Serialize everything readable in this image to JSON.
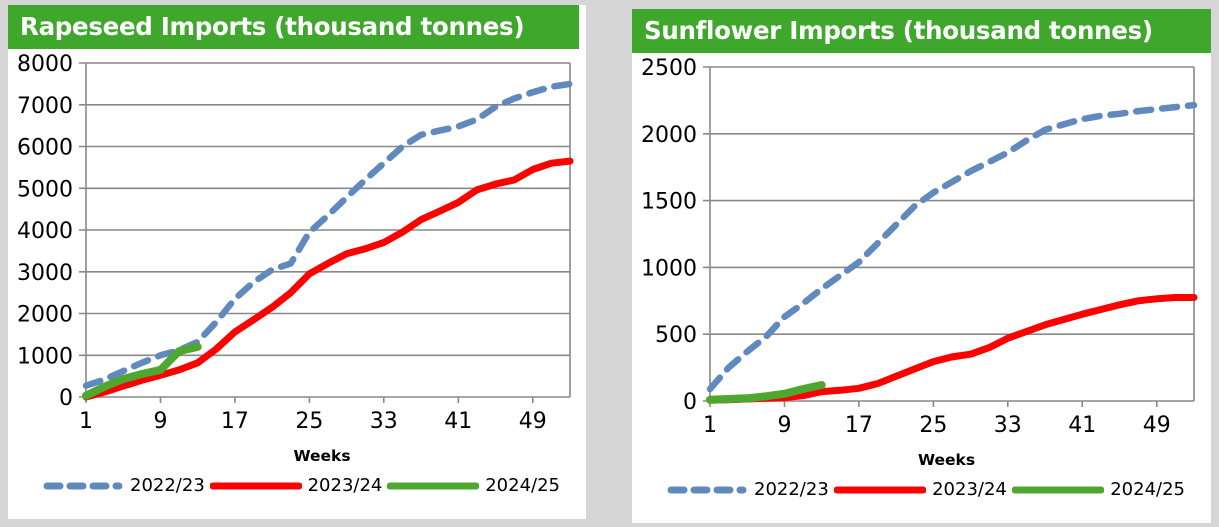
{
  "colors": {
    "header_bg": "#3FA72C",
    "header_text": "#FFFFFF",
    "gridline": "#898989",
    "background": "#D6D6D6",
    "panel_bg": "#FFFFFF",
    "series_blue": "#6089BE",
    "series_red": "#FF0000",
    "series_green": "#4EA72E"
  },
  "chart_data": [
    {
      "type": "line",
      "title": "Rapeseed Imports (thousand tonnes)",
      "xlabel": "Weeks",
      "ylabel": "",
      "xlim": [
        1,
        53
      ],
      "ylim": [
        0,
        8000
      ],
      "x_ticks": [
        1,
        9,
        17,
        25,
        33,
        41,
        49
      ],
      "y_ticks": [
        0,
        1000,
        2000,
        3000,
        4000,
        5000,
        6000,
        7000,
        8000
      ],
      "grid": true,
      "legend_position": "bottom",
      "x": [
        1,
        3,
        5,
        7,
        9,
        11,
        13,
        15,
        17,
        19,
        21,
        23,
        25,
        27,
        29,
        31,
        33,
        35,
        37,
        39,
        41,
        43,
        45,
        47,
        49,
        51,
        53
      ],
      "series": [
        {
          "name": "2022/23",
          "color": "#6089BE",
          "style": "dashed",
          "values": [
            270,
            420,
            620,
            820,
            1000,
            1120,
            1320,
            1800,
            2350,
            2750,
            3050,
            3200,
            3950,
            4350,
            4780,
            5200,
            5600,
            6000,
            6280,
            6380,
            6480,
            6650,
            6950,
            7150,
            7300,
            7430,
            7500
          ]
        },
        {
          "name": "2023/24",
          "color": "#FF0000",
          "style": "solid",
          "values": [
            0,
            120,
            260,
            400,
            520,
            650,
            820,
            1150,
            1560,
            1850,
            2150,
            2500,
            2950,
            3200,
            3430,
            3550,
            3700,
            3950,
            4250,
            4450,
            4660,
            4960,
            5100,
            5200,
            5450,
            5600,
            5650
          ]
        },
        {
          "name": "2024/25",
          "color": "#4EA72E",
          "style": "solid",
          "values": [
            30,
            250,
            430,
            550,
            650,
            1100,
            1200
          ]
        }
      ]
    },
    {
      "type": "line",
      "title": "Sunflower Imports (thousand tonnes)",
      "xlabel": "Weeks",
      "ylabel": "",
      "xlim": [
        1,
        53
      ],
      "ylim": [
        0,
        2500
      ],
      "x_ticks": [
        1,
        9,
        17,
        25,
        33,
        41,
        49
      ],
      "y_ticks": [
        0,
        500,
        1000,
        1500,
        2000,
        2500
      ],
      "grid": true,
      "legend_position": "bottom",
      "x": [
        1,
        3,
        5,
        7,
        9,
        11,
        13,
        15,
        17,
        19,
        21,
        23,
        25,
        27,
        29,
        31,
        33,
        35,
        37,
        39,
        41,
        43,
        45,
        47,
        49,
        51,
        53
      ],
      "series": [
        {
          "name": "2022/23",
          "color": "#6089BE",
          "style": "dashed",
          "values": [
            90,
            250,
            370,
            480,
            630,
            730,
            840,
            940,
            1040,
            1180,
            1320,
            1460,
            1560,
            1640,
            1720,
            1790,
            1860,
            1950,
            2030,
            2070,
            2110,
            2135,
            2150,
            2170,
            2185,
            2200,
            2215
          ]
        },
        {
          "name": "2023/24",
          "color": "#FF0000",
          "style": "solid",
          "values": [
            5,
            10,
            15,
            20,
            25,
            40,
            70,
            80,
            95,
            130,
            185,
            240,
            295,
            330,
            350,
            400,
            470,
            520,
            570,
            610,
            650,
            685,
            720,
            750,
            765,
            775,
            775
          ]
        },
        {
          "name": "2024/25",
          "color": "#4EA72E",
          "style": "solid",
          "values": [
            10,
            15,
            20,
            35,
            55,
            90,
            120
          ]
        }
      ]
    }
  ]
}
